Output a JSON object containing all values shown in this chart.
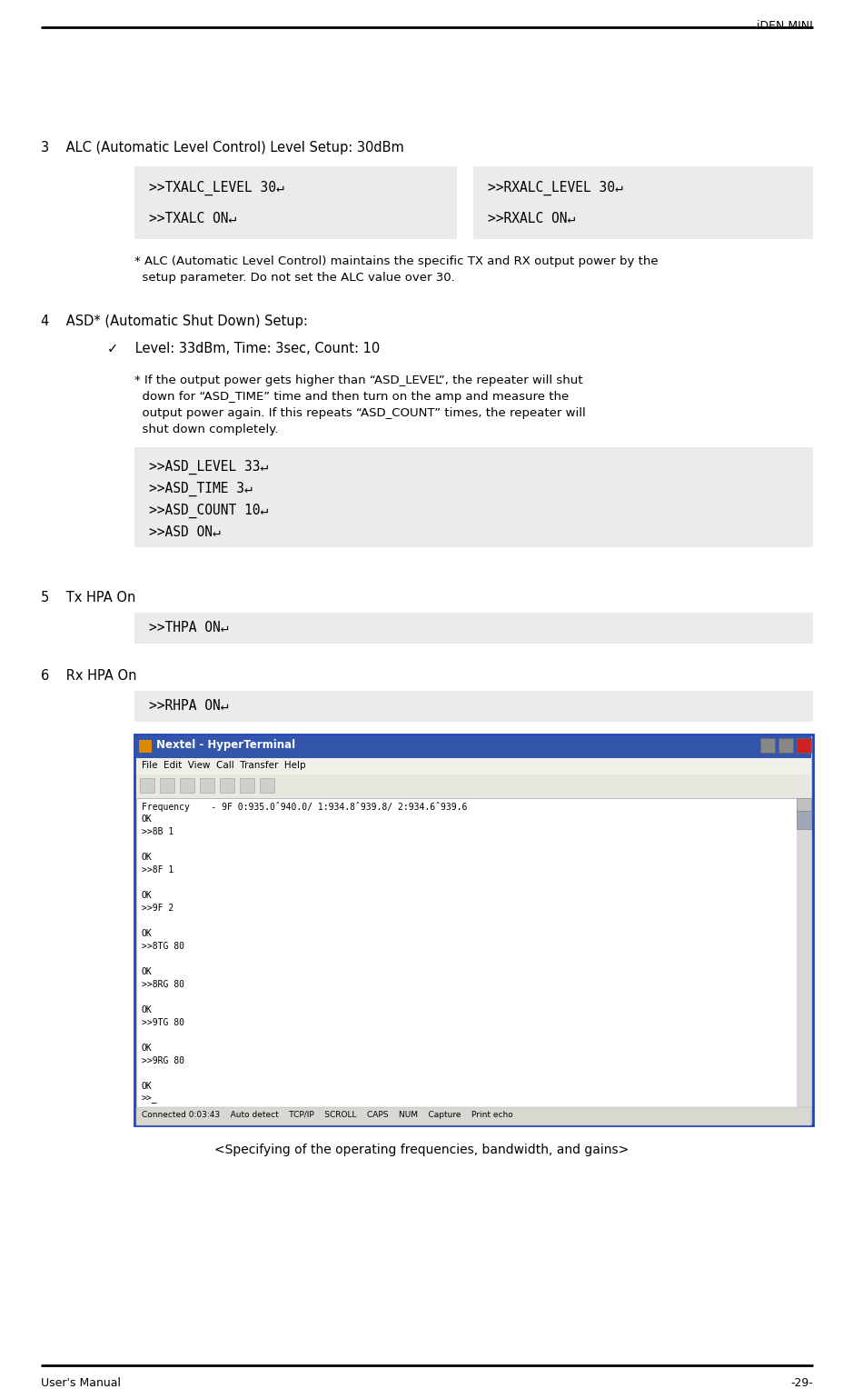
{
  "header_text": "iDEN MINI",
  "footer_left": "User's Manual",
  "footer_right": "-29-",
  "bg_color": "#ffffff",
  "box_bg": "#e8e8e8",
  "section3_heading": "3    ALC (Automatic Level Control) Level Setup: 30dBm",
  "box_left_lines": [
    ">>TXALC_LEVEL 30↵",
    ">>TXALC ON↵"
  ],
  "box_right_lines": [
    ">>RXALC_LEVEL 30↵",
    ">>RXALC ON↵"
  ],
  "note3_line1": "* ALC (Automatic Level Control) maintains the specific TX and RX output power by the",
  "note3_line2": "  setup parameter. Do not set the ALC value over 30.",
  "section4_heading": "4    ASD* (Automatic Shut Down) Setup:",
  "section4_check": "✓    Level: 33dBm, Time: 3sec, Count: 10",
  "note4_line1": "* If the output power gets higher than “ASD_LEVEL”, the repeater will shut",
  "note4_line2": "  down for “ASD_TIME” time and then turn on the amp and measure the",
  "note4_line3": "  output power again. If this repeats “ASD_COUNT” times, the repeater will",
  "note4_line4": "  shut down completely.",
  "box_asd_lines": [
    ">>ASD_LEVEL 33↵",
    ">>ASD_TIME 3↵",
    ">>ASD_COUNT 10↵",
    ">>ASD ON↵"
  ],
  "section5_heading": "5    Tx HPA On",
  "box_thpa_lines": [
    ">>THPA ON↵"
  ],
  "section6_heading": "6    Rx HPA On",
  "box_rhpa_lines": [
    ">>RHPA ON↵"
  ],
  "caption": "<Specifying of the operating frequencies, bandwidth, and gains>",
  "terminal_title": "Nextel - HyperTerminal",
  "terminal_menu": "File  Edit  View  Call  Transfer  Help",
  "terminal_lines": [
    "Frequency    - 9F 0:935.0ˆ940.0/ 1:934.8ˆ939.8/ 2:934.6ˆ939.6",
    "OK",
    ">>8B 1",
    "",
    "OK",
    ">>8F 1",
    "",
    "OK",
    ">>9F 2",
    "",
    "OK",
    ">>8TG 80",
    "",
    "OK",
    ">>8RG 80",
    "",
    "OK",
    ">>9TG 80",
    "",
    "OK",
    ">>9RG 80",
    "",
    "OK",
    ">>_"
  ],
  "terminal_status": "Connected 0:03:43    Auto detect    TCP/IP    SCROLL    CAPS    NUM    Capture    Print echo",
  "title_bar_color": "#3355aa",
  "term_border_color": "#2244bb"
}
